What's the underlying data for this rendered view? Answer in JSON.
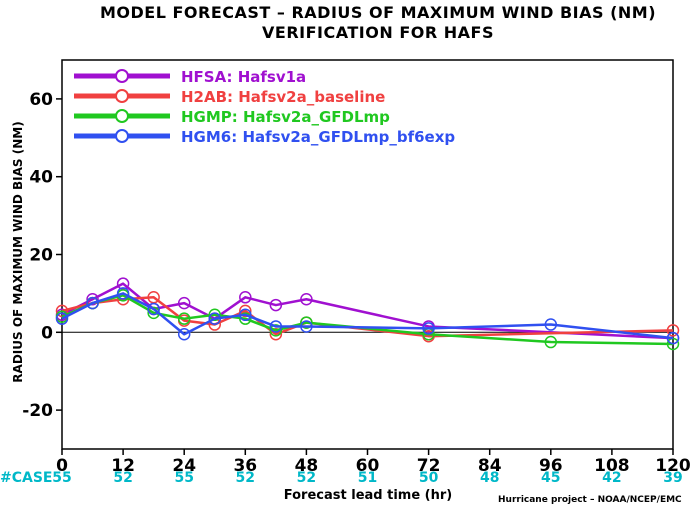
{
  "chart_data": {
    "type": "line",
    "title": "MODEL FORECAST – RADIUS OF MAXIMUM WIND BIAS (NM)",
    "subtitle": "VERIFICATION FOR HAFS",
    "xlabel": "Forecast lead time (hr)",
    "ylabel": "RADIUS OF MAXIMUM WIND BIAS (NM)",
    "xlim": [
      0,
      120
    ],
    "ylim": [
      -30,
      70
    ],
    "x_ticks": [
      0,
      12,
      24,
      36,
      48,
      60,
      72,
      84,
      96,
      108,
      120
    ],
    "y_ticks": [
      -20,
      0,
      20,
      40,
      60
    ],
    "zero_line": true,
    "legend_position": "top-left",
    "case_label": "#CASE",
    "case_counts": [
      {
        "x": 0,
        "n": "55"
      },
      {
        "x": 12,
        "n": "52"
      },
      {
        "x": 24,
        "n": "55"
      },
      {
        "x": 36,
        "n": "52"
      },
      {
        "x": 48,
        "n": "52"
      },
      {
        "x": 60,
        "n": "51"
      },
      {
        "x": 72,
        "n": "50"
      },
      {
        "x": 84,
        "n": "48"
      },
      {
        "x": 96,
        "n": "45"
      },
      {
        "x": 108,
        "n": "42"
      },
      {
        "x": 120,
        "n": "39"
      }
    ],
    "credit": "Hurricane project – NOAA/NCEP/EMC",
    "series": [
      {
        "name": "HFSA: Hafsv1a",
        "color": "#a010d0",
        "x": [
          0,
          6,
          12,
          18,
          24,
          30,
          36,
          42,
          48,
          72,
          120
        ],
        "y": [
          4.5,
          8.5,
          12.5,
          6.0,
          7.5,
          3.5,
          9.0,
          7.0,
          8.5,
          1.5,
          -1.5
        ]
      },
      {
        "name": "H2AB: Hafsv2a_baseline",
        "color": "#f04040",
        "x": [
          0,
          6,
          12,
          18,
          24,
          30,
          36,
          42,
          48,
          72,
          120
        ],
        "y": [
          5.5,
          7.5,
          8.5,
          9.0,
          3.0,
          2.0,
          5.5,
          -0.5,
          2.5,
          -1.0,
          0.5
        ]
      },
      {
        "name": "HGMP: Hafsv2a_GFDLmp",
        "color": "#20c820",
        "x": [
          0,
          6,
          12,
          18,
          24,
          30,
          36,
          42,
          48,
          72,
          96,
          120
        ],
        "y": [
          4.0,
          7.5,
          9.5,
          5.0,
          3.5,
          4.5,
          3.5,
          0.5,
          2.5,
          -0.5,
          -2.5,
          -3.0
        ]
      },
      {
        "name": "HGM6: Hafsv2a_GFDLmp_bf6exp",
        "color": "#3050f0",
        "x": [
          0,
          6,
          12,
          18,
          24,
          30,
          36,
          42,
          48,
          72,
          96,
          120
        ],
        "y": [
          3.5,
          7.5,
          10.0,
          6.0,
          -0.5,
          3.5,
          4.5,
          1.5,
          1.5,
          1.0,
          2.0,
          -1.5
        ]
      }
    ]
  }
}
